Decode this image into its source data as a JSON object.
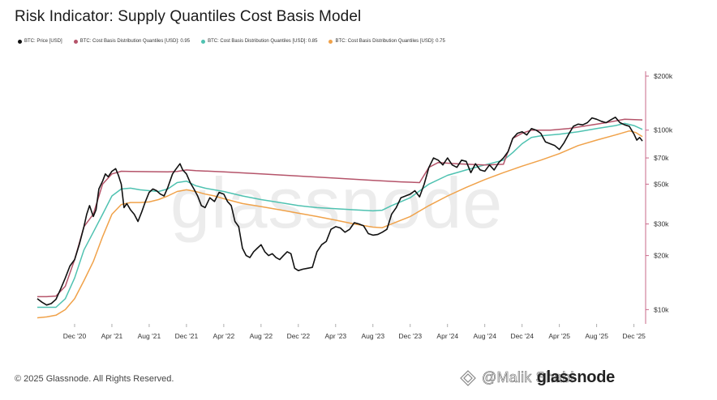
{
  "title": "Risk Indicator: Supply Quantiles Cost Basis Model",
  "legend": [
    {
      "label": "BTC: Price [USD]",
      "color": "#111111"
    },
    {
      "label": "BTC: Cost Basis Distribution Quantiles [USD]: 0.95",
      "color": "#b5546a"
    },
    {
      "label": "BTC: Cost Basis Distribution Quantiles [USD]: 0.85",
      "color": "#4fc2b1"
    },
    {
      "label": "BTC: Cost Basis Distribution Quantiles [USD]: 0.75",
      "color": "#f0a24a"
    }
  ],
  "watermark": "glassnode",
  "footer": "© 2025 Glassnode. All Rights Reserved.",
  "overlay_handle": "@Malik Shabi",
  "overlay_brand": "glassnode",
  "chart_data": {
    "type": "line",
    "title": "Risk Indicator: Supply Quantiles Cost Basis Model",
    "y_scale": "log",
    "ylim": [
      8500,
      200000
    ],
    "y_ticks": [
      {
        "value": 10000,
        "label": "$10k"
      },
      {
        "value": 20000,
        "label": "$20k"
      },
      {
        "value": 30000,
        "label": "$30k"
      },
      {
        "value": 50000,
        "label": "$50k"
      },
      {
        "value": 70000,
        "label": "$70k"
      },
      {
        "value": 100000,
        "label": "$100k"
      },
      {
        "value": 200000,
        "label": "$200k"
      }
    ],
    "x_range": [
      "2020-08",
      "2025-12"
    ],
    "x_ticks": [
      {
        "t": 4,
        "label": "Dec '20"
      },
      {
        "t": 8,
        "label": "Apr '21"
      },
      {
        "t": 12,
        "label": "Aug '21"
      },
      {
        "t": 16,
        "label": "Dec '21"
      },
      {
        "t": 20,
        "label": "Apr '22"
      },
      {
        "t": 24,
        "label": "Aug '22"
      },
      {
        "t": 28,
        "label": "Dec '22"
      },
      {
        "t": 32,
        "label": "Apr '23"
      },
      {
        "t": 36,
        "label": "Aug '23"
      },
      {
        "t": 40,
        "label": "Dec '23"
      },
      {
        "t": 44,
        "label": "Apr '24"
      },
      {
        "t": 48,
        "label": "Aug '24"
      },
      {
        "t": 52,
        "label": "Dec '24"
      },
      {
        "t": 56,
        "label": "Apr '25"
      },
      {
        "t": 60,
        "label": "Aug '25"
      },
      {
        "t": 64,
        "label": "Dec '25"
      }
    ],
    "x_unit": "months since Aug 2020",
    "series": [
      {
        "name": "BTC: Price [USD]",
        "color": "#111111",
        "points": [
          [
            0,
            11500
          ],
          [
            0.5,
            11000
          ],
          [
            1,
            10600
          ],
          [
            1.5,
            10800
          ],
          [
            2,
            11400
          ],
          [
            2.5,
            13000
          ],
          [
            3,
            15000
          ],
          [
            3.5,
            17500
          ],
          [
            4,
            19000
          ],
          [
            4.5,
            23000
          ],
          [
            5,
            29000
          ],
          [
            5.3,
            34000
          ],
          [
            5.6,
            38000
          ],
          [
            6,
            33000
          ],
          [
            6.3,
            36000
          ],
          [
            6.6,
            47000
          ],
          [
            7,
            52000
          ],
          [
            7.3,
            57000
          ],
          [
            7.6,
            55000
          ],
          [
            8,
            59000
          ],
          [
            8.4,
            61000
          ],
          [
            8.7,
            56000
          ],
          [
            9,
            50000
          ],
          [
            9.3,
            37000
          ],
          [
            9.6,
            39000
          ],
          [
            10,
            36000
          ],
          [
            10.4,
            34000
          ],
          [
            10.8,
            31000
          ],
          [
            11.2,
            35000
          ],
          [
            11.6,
            40000
          ],
          [
            12,
            45000
          ],
          [
            12.4,
            47000
          ],
          [
            12.8,
            46000
          ],
          [
            13.2,
            44000
          ],
          [
            13.6,
            43000
          ],
          [
            14,
            48000
          ],
          [
            14.5,
            57000
          ],
          [
            14.9,
            61000
          ],
          [
            15.3,
            65000
          ],
          [
            15.6,
            60000
          ],
          [
            16,
            57000
          ],
          [
            16.4,
            51000
          ],
          [
            16.8,
            47000
          ],
          [
            17.2,
            43000
          ],
          [
            17.6,
            38000
          ],
          [
            18,
            37000
          ],
          [
            18.5,
            42000
          ],
          [
            19,
            40000
          ],
          [
            19.5,
            45000
          ],
          [
            20,
            44000
          ],
          [
            20.4,
            40000
          ],
          [
            20.8,
            38000
          ],
          [
            21.2,
            31000
          ],
          [
            21.6,
            29000
          ],
          [
            22,
            22000
          ],
          [
            22.4,
            20000
          ],
          [
            22.8,
            19500
          ],
          [
            23.2,
            21000
          ],
          [
            23.6,
            22000
          ],
          [
            24,
            23000
          ],
          [
            24.4,
            21000
          ],
          [
            24.8,
            20000
          ],
          [
            25.2,
            20500
          ],
          [
            25.6,
            19500
          ],
          [
            26,
            19000
          ],
          [
            26.4,
            20000
          ],
          [
            26.8,
            21000
          ],
          [
            27.2,
            20500
          ],
          [
            27.6,
            17000
          ],
          [
            28,
            16500
          ],
          [
            28.5,
            16800
          ],
          [
            29,
            17000
          ],
          [
            29.5,
            17200
          ],
          [
            30,
            21000
          ],
          [
            30.5,
            23000
          ],
          [
            31,
            24000
          ],
          [
            31.5,
            28000
          ],
          [
            32,
            29000
          ],
          [
            32.5,
            28500
          ],
          [
            33,
            27000
          ],
          [
            33.5,
            28000
          ],
          [
            34,
            30500
          ],
          [
            34.5,
            30000
          ],
          [
            35,
            29300
          ],
          [
            35.5,
            26500
          ],
          [
            36,
            26000
          ],
          [
            36.5,
            26200
          ],
          [
            37,
            27000
          ],
          [
            37.5,
            28000
          ],
          [
            38,
            34000
          ],
          [
            38.5,
            37000
          ],
          [
            39,
            42000
          ],
          [
            39.5,
            43000
          ],
          [
            40,
            44000
          ],
          [
            40.5,
            46000
          ],
          [
            41,
            42500
          ],
          [
            41.5,
            50000
          ],
          [
            42,
            62000
          ],
          [
            42.5,
            70000
          ],
          [
            43,
            68000
          ],
          [
            43.5,
            64000
          ],
          [
            44,
            70000
          ],
          [
            44.5,
            64000
          ],
          [
            45,
            62000
          ],
          [
            45.5,
            68000
          ],
          [
            46,
            67000
          ],
          [
            46.5,
            58000
          ],
          [
            47,
            65000
          ],
          [
            47.5,
            60000
          ],
          [
            48,
            59000
          ],
          [
            48.5,
            64000
          ],
          [
            49,
            60000
          ],
          [
            49.5,
            66000
          ],
          [
            50,
            70000
          ],
          [
            50.5,
            76000
          ],
          [
            51,
            90000
          ],
          [
            51.5,
            96000
          ],
          [
            52,
            98000
          ],
          [
            52.5,
            94000
          ],
          [
            53,
            102000
          ],
          [
            53.5,
            100000
          ],
          [
            54,
            96000
          ],
          [
            54.5,
            86000
          ],
          [
            55,
            84000
          ],
          [
            55.5,
            82000
          ],
          [
            56,
            78000
          ],
          [
            56.5,
            85000
          ],
          [
            57,
            95000
          ],
          [
            57.5,
            105000
          ],
          [
            58,
            108000
          ],
          [
            58.5,
            107000
          ],
          [
            59,
            110000
          ],
          [
            59.5,
            117000
          ],
          [
            60,
            115000
          ],
          [
            60.5,
            112000
          ],
          [
            61,
            110000
          ],
          [
            61.5,
            114000
          ],
          [
            62,
            118000
          ],
          [
            62.5,
            110000
          ],
          [
            63,
            107000
          ],
          [
            63.5,
            105000
          ],
          [
            64,
            95000
          ],
          [
            64.3,
            88000
          ],
          [
            64.6,
            91000
          ],
          [
            64.9,
            87000
          ]
        ]
      },
      {
        "name": "BTC: Cost Basis Distribution Quantiles [USD]: 0.95",
        "color": "#b5546a",
        "points": [
          [
            0,
            11800
          ],
          [
            1,
            11800
          ],
          [
            2,
            11900
          ],
          [
            3,
            13500
          ],
          [
            4,
            19000
          ],
          [
            5,
            29000
          ],
          [
            6,
            34000
          ],
          [
            7,
            50000
          ],
          [
            8,
            57000
          ],
          [
            9,
            59000
          ],
          [
            10,
            58800
          ],
          [
            12,
            58700
          ],
          [
            14,
            58600
          ],
          [
            15,
            58800
          ],
          [
            16,
            60000
          ],
          [
            17,
            59500
          ],
          [
            20,
            58500
          ],
          [
            24,
            57000
          ],
          [
            28,
            55500
          ],
          [
            32,
            54000
          ],
          [
            36,
            52500
          ],
          [
            39,
            51500
          ],
          [
            41,
            51000
          ],
          [
            42,
            62000
          ],
          [
            43,
            66000
          ],
          [
            45,
            65000
          ],
          [
            48,
            64000
          ],
          [
            50,
            64500
          ],
          [
            51,
            90000
          ],
          [
            52,
            96000
          ],
          [
            53,
            100000
          ],
          [
            55,
            100000
          ],
          [
            57,
            102000
          ],
          [
            59,
            106000
          ],
          [
            61,
            110000
          ],
          [
            63,
            115000
          ],
          [
            64.9,
            114000
          ]
        ]
      },
      {
        "name": "BTC: Cost Basis Distribution Quantiles [USD]: 0.85",
        "color": "#4fc2b1",
        "points": [
          [
            0,
            10300
          ],
          [
            1,
            10300
          ],
          [
            2,
            10300
          ],
          [
            3,
            11500
          ],
          [
            4,
            15000
          ],
          [
            5,
            21500
          ],
          [
            6,
            27000
          ],
          [
            7,
            34000
          ],
          [
            8,
            43000
          ],
          [
            9,
            47000
          ],
          [
            10,
            47500
          ],
          [
            11,
            46500
          ],
          [
            12,
            46000
          ],
          [
            13,
            45500
          ],
          [
            14,
            47000
          ],
          [
            15,
            51000
          ],
          [
            16,
            52000
          ],
          [
            17,
            49000
          ],
          [
            18,
            47500
          ],
          [
            20,
            45500
          ],
          [
            22,
            43000
          ],
          [
            24,
            41000
          ],
          [
            26,
            39500
          ],
          [
            28,
            38000
          ],
          [
            30,
            37000
          ],
          [
            32,
            36500
          ],
          [
            34,
            36000
          ],
          [
            36,
            35500
          ],
          [
            37,
            35800
          ],
          [
            38,
            38000
          ],
          [
            40,
            42000
          ],
          [
            42,
            50000
          ],
          [
            44,
            56000
          ],
          [
            46,
            60000
          ],
          [
            48,
            64000
          ],
          [
            50,
            68000
          ],
          [
            51,
            75000
          ],
          [
            52,
            84000
          ],
          [
            53,
            91000
          ],
          [
            54,
            93000
          ],
          [
            56,
            95000
          ],
          [
            58,
            98000
          ],
          [
            60,
            102000
          ],
          [
            62,
            106000
          ],
          [
            63,
            109000
          ],
          [
            64,
            106000
          ],
          [
            64.9,
            101000
          ]
        ]
      },
      {
        "name": "BTC: Cost Basis Distribution Quantiles [USD]: 0.75",
        "color": "#f0a24a",
        "points": [
          [
            0,
            9000
          ],
          [
            1,
            9100
          ],
          [
            2,
            9300
          ],
          [
            3,
            10000
          ],
          [
            4,
            11500
          ],
          [
            5,
            14500
          ],
          [
            6,
            18500
          ],
          [
            7,
            25500
          ],
          [
            8,
            34000
          ],
          [
            9,
            38500
          ],
          [
            10,
            39500
          ],
          [
            11,
            39500
          ],
          [
            12,
            39800
          ],
          [
            13,
            41000
          ],
          [
            14,
            43000
          ],
          [
            15,
            45500
          ],
          [
            16,
            46500
          ],
          [
            17,
            45500
          ],
          [
            18,
            44000
          ],
          [
            19,
            43000
          ],
          [
            20,
            41500
          ],
          [
            22,
            39000
          ],
          [
            24,
            37500
          ],
          [
            26,
            36000
          ],
          [
            28,
            34500
          ],
          [
            30,
            33000
          ],
          [
            32,
            31500
          ],
          [
            34,
            30000
          ],
          [
            36,
            28800
          ],
          [
            37,
            28600
          ],
          [
            38,
            30000
          ],
          [
            40,
            33000
          ],
          [
            42,
            38000
          ],
          [
            44,
            43000
          ],
          [
            46,
            48000
          ],
          [
            48,
            53000
          ],
          [
            50,
            58000
          ],
          [
            52,
            63000
          ],
          [
            54,
            68000
          ],
          [
            56,
            74000
          ],
          [
            58,
            82000
          ],
          [
            60,
            88000
          ],
          [
            62,
            94000
          ],
          [
            63.5,
            99000
          ],
          [
            64.2,
            97000
          ],
          [
            64.9,
            92000
          ]
        ]
      }
    ]
  }
}
